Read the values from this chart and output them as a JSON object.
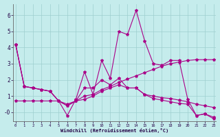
{
  "xlabel": "Windchill (Refroidissement éolien,°C)",
  "bg_color": "#c5ecec",
  "line_color": "#aa0088",
  "grid_color": "#9ecece",
  "xlim": [
    -0.3,
    23.3
  ],
  "ylim": [
    -0.55,
    6.7
  ],
  "ytick_vals": [
    0,
    1,
    2,
    3,
    4,
    5,
    6
  ],
  "ytick_labels": [
    "-0",
    "1",
    "2",
    "3",
    "4",
    "5",
    "6"
  ],
  "xtick_vals": [
    0,
    1,
    2,
    3,
    4,
    5,
    6,
    7,
    8,
    9,
    10,
    11,
    12,
    13,
    14,
    15,
    16,
    17,
    18,
    19,
    20,
    21,
    22,
    23
  ],
  "series": [
    [
      4.2,
      1.6,
      1.5,
      1.4,
      1.3,
      0.7,
      -0.2,
      0.8,
      2.5,
      1.1,
      3.2,
      2.1,
      5.0,
      4.8,
      6.3,
      4.4,
      3.0,
      2.9,
      3.2,
      3.2,
      0.8,
      -0.2,
      -0.1,
      -0.3
    ],
    [
      4.2,
      1.6,
      1.5,
      1.4,
      1.3,
      0.7,
      0.4,
      0.7,
      1.5,
      1.5,
      2.0,
      1.7,
      2.1,
      1.5,
      1.5,
      1.1,
      1.0,
      0.9,
      0.85,
      0.75,
      0.65,
      0.5,
      0.4,
      0.3
    ],
    [
      0.7,
      0.7,
      0.7,
      0.7,
      0.7,
      0.7,
      0.5,
      0.7,
      1.0,
      1.1,
      1.4,
      1.6,
      1.85,
      2.05,
      2.25,
      2.45,
      2.65,
      2.85,
      3.0,
      3.1,
      3.2,
      3.25,
      3.25,
      3.25
    ],
    [
      4.2,
      1.6,
      1.5,
      1.4,
      1.3,
      0.7,
      0.4,
      0.7,
      0.8,
      1.0,
      1.3,
      1.5,
      1.7,
      1.5,
      1.5,
      1.1,
      0.85,
      0.75,
      0.65,
      0.55,
      0.5,
      -0.2,
      -0.1,
      -0.4
    ]
  ]
}
